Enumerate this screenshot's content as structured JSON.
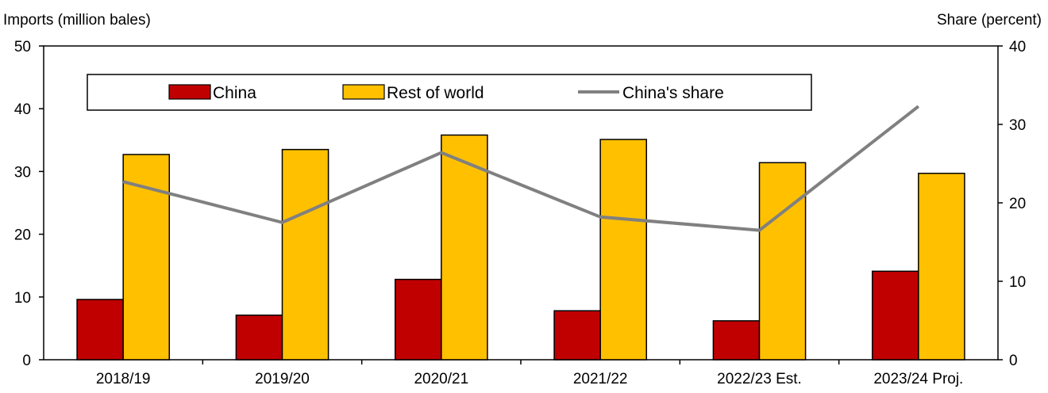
{
  "chart_data": {
    "type": "bar",
    "categories": [
      "2018/19",
      "2019/20",
      "2020/21",
      "2021/22",
      "2022/23 Est.",
      "2023/24 Proj."
    ],
    "series": [
      {
        "name": "China",
        "kind": "bar",
        "axis": "left",
        "color": "#C00000",
        "values": [
          9.6,
          7.1,
          12.8,
          7.8,
          6.2,
          14.1
        ]
      },
      {
        "name": "Rest of world",
        "kind": "bar",
        "axis": "left",
        "color": "#FFC000",
        "values": [
          32.7,
          33.5,
          35.8,
          35.1,
          31.4,
          29.7
        ]
      },
      {
        "name": "China's share",
        "kind": "line",
        "axis": "right",
        "color": "#808080",
        "values": [
          22.7,
          17.5,
          26.4,
          18.2,
          16.5,
          32.3
        ]
      }
    ],
    "ylabel_left": "Imports (million bales)",
    "ylabel_right": "Share (percent)",
    "ylim_left": [
      0,
      50
    ],
    "ylim_right": [
      0,
      40
    ],
    "yticks_left": [
      0,
      10,
      20,
      30,
      40,
      50
    ],
    "yticks_right": [
      0,
      10,
      20,
      30,
      40
    ],
    "grid": false,
    "legend": "top",
    "legend_labels": [
      "China",
      "Rest of world",
      "China's share"
    ]
  }
}
